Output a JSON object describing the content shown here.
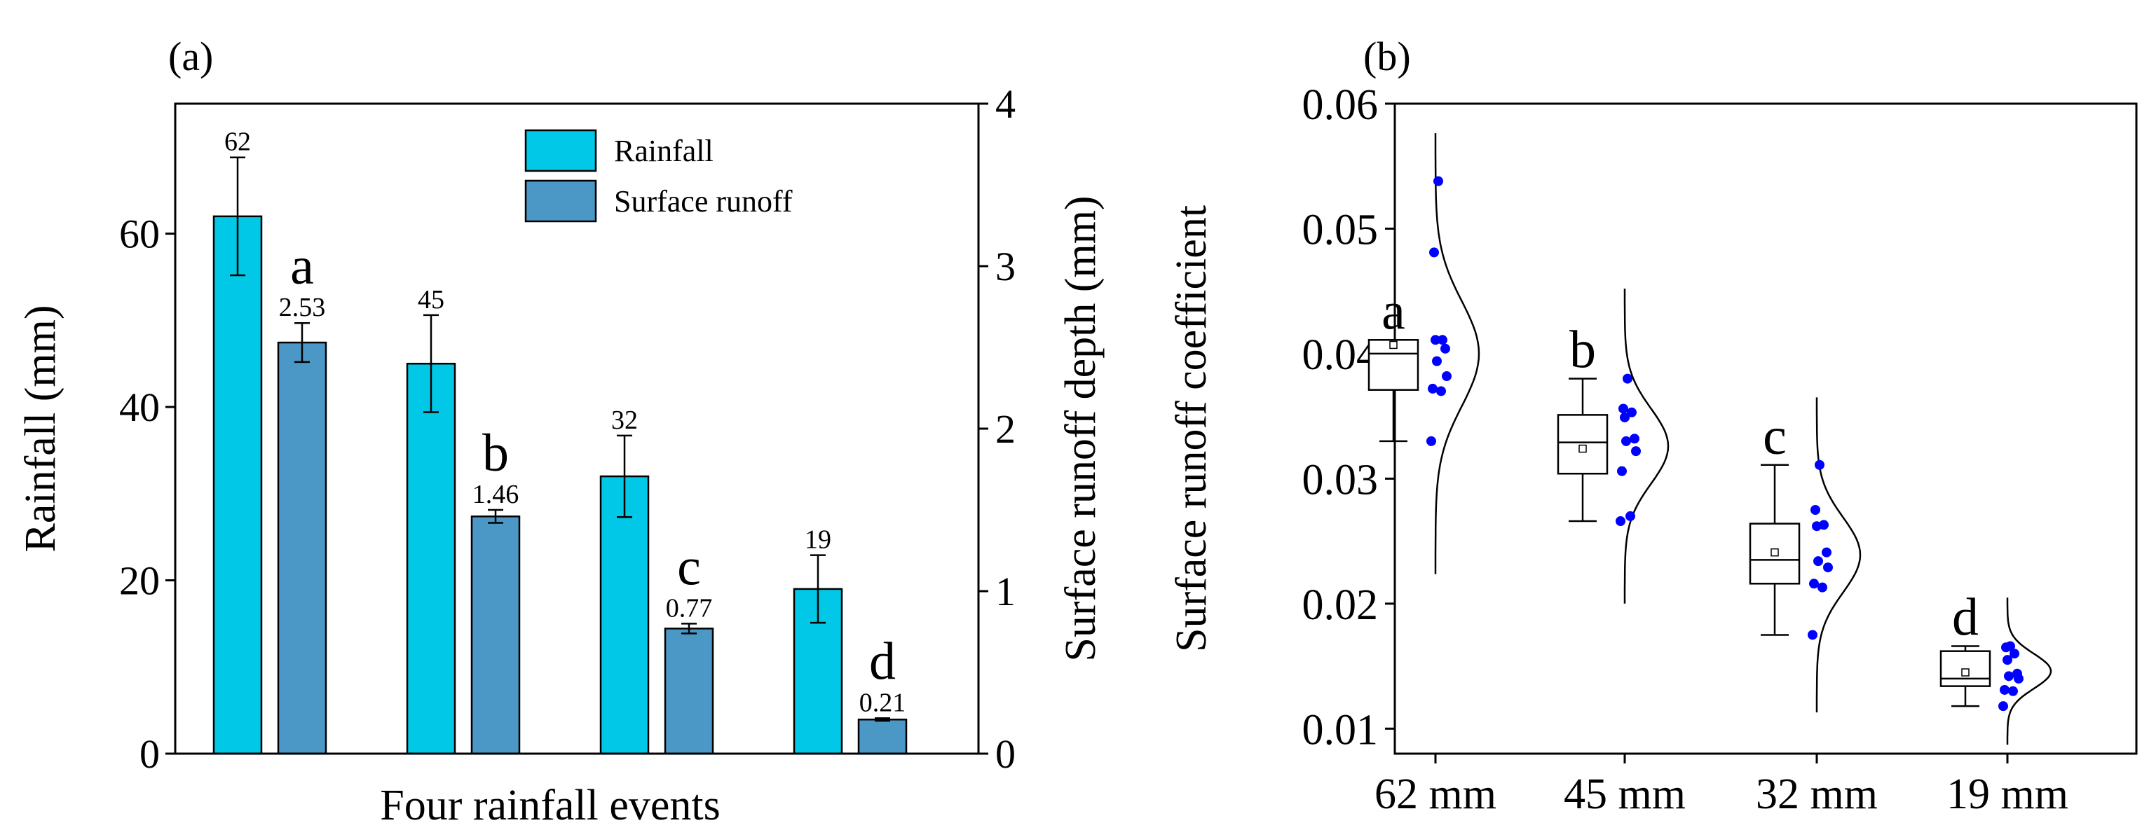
{
  "colors": {
    "rainfall": "#00C8E6",
    "runoff": "#4B97C6",
    "points": "#0000FF",
    "axis": "#000000"
  },
  "chart_data": [
    {
      "type": "bar",
      "panel": "(a)",
      "xlabel": "Four rainfall events",
      "ylabel": "Rainfall (mm)",
      "y2label": "Surface runoff depth (mm)",
      "ylim": [
        0,
        75
      ],
      "y_ticks": [
        0,
        20,
        40,
        60
      ],
      "y2lim": [
        0,
        4
      ],
      "y2_ticks": [
        0,
        1,
        2,
        3,
        4
      ],
      "legend_position": "top-right",
      "series": [
        {
          "name": "Rainfall",
          "axis": "left",
          "values": [
            62,
            45,
            32,
            19
          ],
          "errors": [
            6.8,
            5.6,
            4.7,
            3.9
          ],
          "labels": [
            "62",
            "45",
            "32",
            "19"
          ]
        },
        {
          "name": "Surface runoff",
          "axis": "right",
          "values": [
            2.53,
            1.46,
            0.77,
            0.21
          ],
          "errors": [
            0.12,
            0.04,
            0.03,
            0.008
          ],
          "labels": [
            "2.53",
            "1.46",
            "0.77",
            "0.21"
          ],
          "letters": [
            "a",
            "b",
            "c",
            "d"
          ]
        }
      ]
    },
    {
      "type": "box",
      "panel": "(b)",
      "xlabel": "",
      "ylabel": "Surface runoff coefficient",
      "ylim": [
        0.008,
        0.06
      ],
      "y_ticks": [
        "0.01",
        "0.02",
        "0.03",
        "0.04",
        "0.05",
        "0.06"
      ],
      "categories": [
        "62 mm",
        "45 mm",
        "32 mm",
        "19 mm"
      ],
      "letters": [
        "a",
        "b",
        "c",
        "d"
      ],
      "boxes": [
        {
          "min": 0.033,
          "q1": 0.0371,
          "median": 0.04,
          "q3": 0.0411,
          "max": 0.0411,
          "mean": 0.0407
        },
        {
          "min": 0.0266,
          "q1": 0.0304,
          "median": 0.0329,
          "q3": 0.0351,
          "max": 0.038,
          "mean": 0.0324
        },
        {
          "min": 0.0175,
          "q1": 0.0216,
          "median": 0.0235,
          "q3": 0.0264,
          "max": 0.0311,
          "mean": 0.0241
        },
        {
          "min": 0.0118,
          "q1": 0.0134,
          "median": 0.014,
          "q3": 0.0162,
          "max": 0.0166,
          "mean": 0.0145
        }
      ],
      "points": [
        [
          0.0538,
          0.0481,
          0.0411,
          0.0411,
          0.0404,
          0.0394,
          0.0382,
          0.0372,
          0.037,
          0.033
        ],
        [
          0.038,
          0.0356,
          0.0353,
          0.0349,
          0.0332,
          0.033,
          0.0322,
          0.0306,
          0.027,
          0.0266
        ],
        [
          0.0311,
          0.0275,
          0.0263,
          0.0262,
          0.0241,
          0.0234,
          0.0229,
          0.0216,
          0.0213,
          0.0175
        ],
        [
          0.0166,
          0.0165,
          0.016,
          0.0155,
          0.0144,
          0.0142,
          0.014,
          0.0131,
          0.013,
          0.0118
        ]
      ],
      "distributions": [
        {
          "mean": 0.04,
          "sd": 0.0042
        },
        {
          "mean": 0.0326,
          "sd": 0.003
        },
        {
          "mean": 0.0239,
          "sd": 0.003
        },
        {
          "mean": 0.0146,
          "sd": 0.0014
        }
      ]
    }
  ]
}
